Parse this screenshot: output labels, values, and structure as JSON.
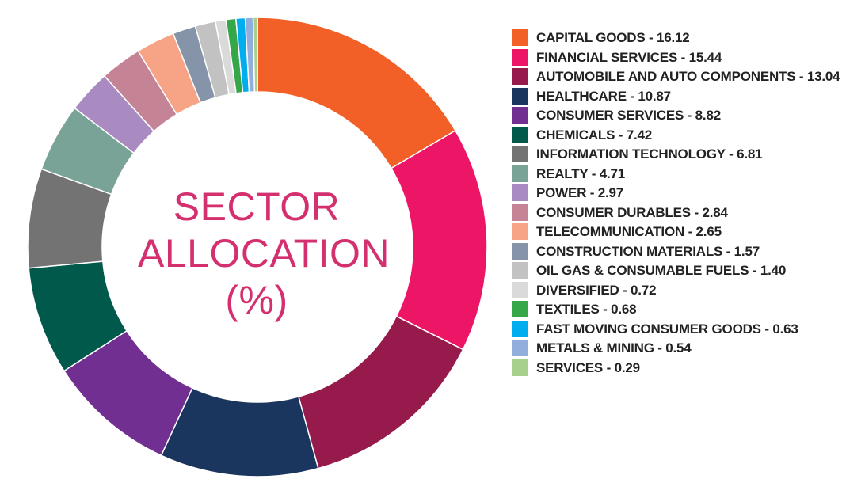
{
  "chart_data": {
    "type": "pie",
    "title_lines": [
      "SECTOR",
      "ALLOCATION",
      "(%)"
    ],
    "colors": {
      "title": "#d42f6e"
    },
    "slices": [
      {
        "label": "CAPITAL GOODS - 16.12",
        "value": 16.12,
        "color": "#f26027"
      },
      {
        "label": "FINANCIAL SERVICES - 15.44",
        "value": 15.44,
        "color": "#ec1566"
      },
      {
        "label": "AUTOMOBILE AND AUTO COMPONENTS - 13.04",
        "value": 13.04,
        "color": "#961a4b"
      },
      {
        "label": "HEALTHCARE - 10.87",
        "value": 10.87,
        "color": "#1b365e"
      },
      {
        "label": "CONSUMER SERVICES - 8.82",
        "value": 8.82,
        "color": "#702f91"
      },
      {
        "label": "CHEMICALS - 7.42",
        "value": 7.42,
        "color": "#00594a"
      },
      {
        "label": "INFORMATION TECHNOLOGY - 6.81",
        "value": 6.81,
        "color": "#737373"
      },
      {
        "label": "REALTY - 4.71",
        "value": 4.71,
        "color": "#7aa397"
      },
      {
        "label": "POWER - 2.97",
        "value": 2.97,
        "color": "#a98bc2"
      },
      {
        "label": "CONSUMER DURABLES - 2.84",
        "value": 2.84,
        "color": "#c48496"
      },
      {
        "label": "TELECOMMUNICATION - 2.65",
        "value": 2.65,
        "color": "#f7a385"
      },
      {
        "label": "CONSTRUCTION MATERIALS - 1.57",
        "value": 1.57,
        "color": "#8594a8"
      },
      {
        "label": "OIL GAS & CONSUMABLE FUELS - 1.40",
        "value": 1.4,
        "color": "#c2c2c2"
      },
      {
        "label": "DIVERSIFIED - 0.72",
        "value": 0.72,
        "color": "#dadada"
      },
      {
        "label": "TEXTILES - 0.68",
        "value": 0.68,
        "color": "#35a749"
      },
      {
        "label": "FAST MOVING CONSUMER GOODS - 0.63",
        "value": 0.63,
        "color": "#00adef"
      },
      {
        "label": "METALS & MINING - 0.54",
        "value": 0.54,
        "color": "#92aedc"
      },
      {
        "label": "SERVICES - 0.29",
        "value": 0.29,
        "color": "#a8d08d"
      }
    ]
  }
}
